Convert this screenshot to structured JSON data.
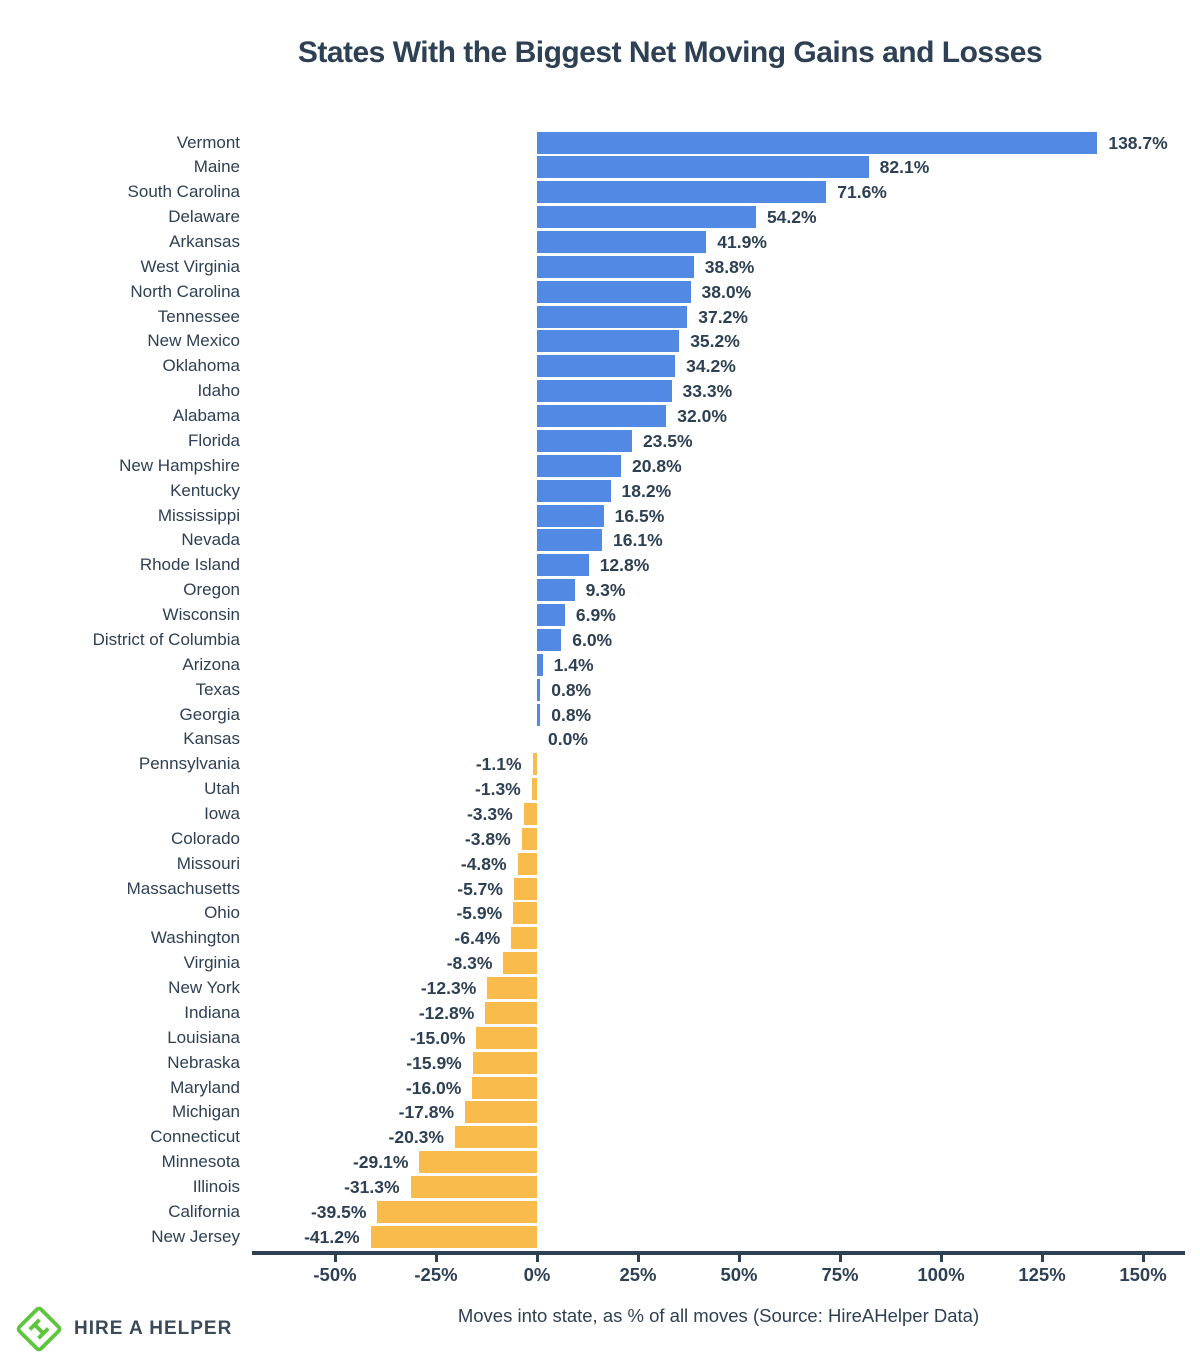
{
  "title": "States With the Biggest Net Moving Gains and Losses",
  "footer": {
    "logo_text": "HIRE A HELPER"
  },
  "chart_data": {
    "type": "bar",
    "orientation": "horizontal",
    "title": "States With the Biggest Net Moving Gains and Losses",
    "xlabel": "Moves into state, as % of all moves (Source: HireAHelper Data)",
    "ylabel": "",
    "unit": "%",
    "grid": false,
    "legend": false,
    "xlim": [
      -71,
      160
    ],
    "x_tick_labels": [
      "-50%",
      "-25%",
      "0%",
      "25%",
      "50%",
      "75%",
      "100%",
      "125%",
      "150%"
    ],
    "x_tick_values": [
      -50,
      -25,
      0,
      25,
      50,
      75,
      100,
      125,
      150
    ],
    "categories": [
      "Vermont",
      "Maine",
      "South Carolina",
      "Delaware",
      "Arkansas",
      "West Virginia",
      "North Carolina",
      "Tennessee",
      "New Mexico",
      "Oklahoma",
      "Idaho",
      "Alabama",
      "Florida",
      "New Hampshire",
      "Kentucky",
      "Mississippi",
      "Nevada",
      "Rhode Island",
      "Oregon",
      "Wisconsin",
      "District of Columbia",
      "Arizona",
      "Texas",
      "Georgia",
      "Kansas",
      "Pennsylvania",
      "Utah",
      "Iowa",
      "Colorado",
      "Missouri",
      "Massachusetts",
      "Ohio",
      "Washington",
      "Virginia",
      "New York",
      "Indiana",
      "Louisiana",
      "Nebraska",
      "Maryland",
      "Michigan",
      "Connecticut",
      "Minnesota",
      "Illinois",
      "California",
      "New Jersey"
    ],
    "values": [
      138.7,
      82.1,
      71.6,
      54.2,
      41.9,
      38.8,
      38.0,
      37.2,
      35.2,
      34.2,
      33.3,
      32.0,
      23.5,
      20.8,
      18.2,
      16.5,
      16.1,
      12.8,
      9.3,
      6.9,
      6.0,
      1.4,
      0.8,
      0.8,
      0.0,
      -1.1,
      -1.3,
      -3.3,
      -3.8,
      -4.8,
      -5.7,
      -5.9,
      -6.4,
      -8.3,
      -12.3,
      -12.8,
      -15.0,
      -15.9,
      -16.0,
      -17.8,
      -20.3,
      -29.1,
      -31.3,
      -39.5,
      -41.2
    ],
    "colors": {
      "positive_bar": "#5289e4",
      "negative_bar": "#f8bb4c",
      "text": "#2e4053",
      "axis": "#2e4053",
      "logo_green": "#5ec63c",
      "logo_text": "#3b4a58",
      "background": "#ffffff"
    }
  }
}
